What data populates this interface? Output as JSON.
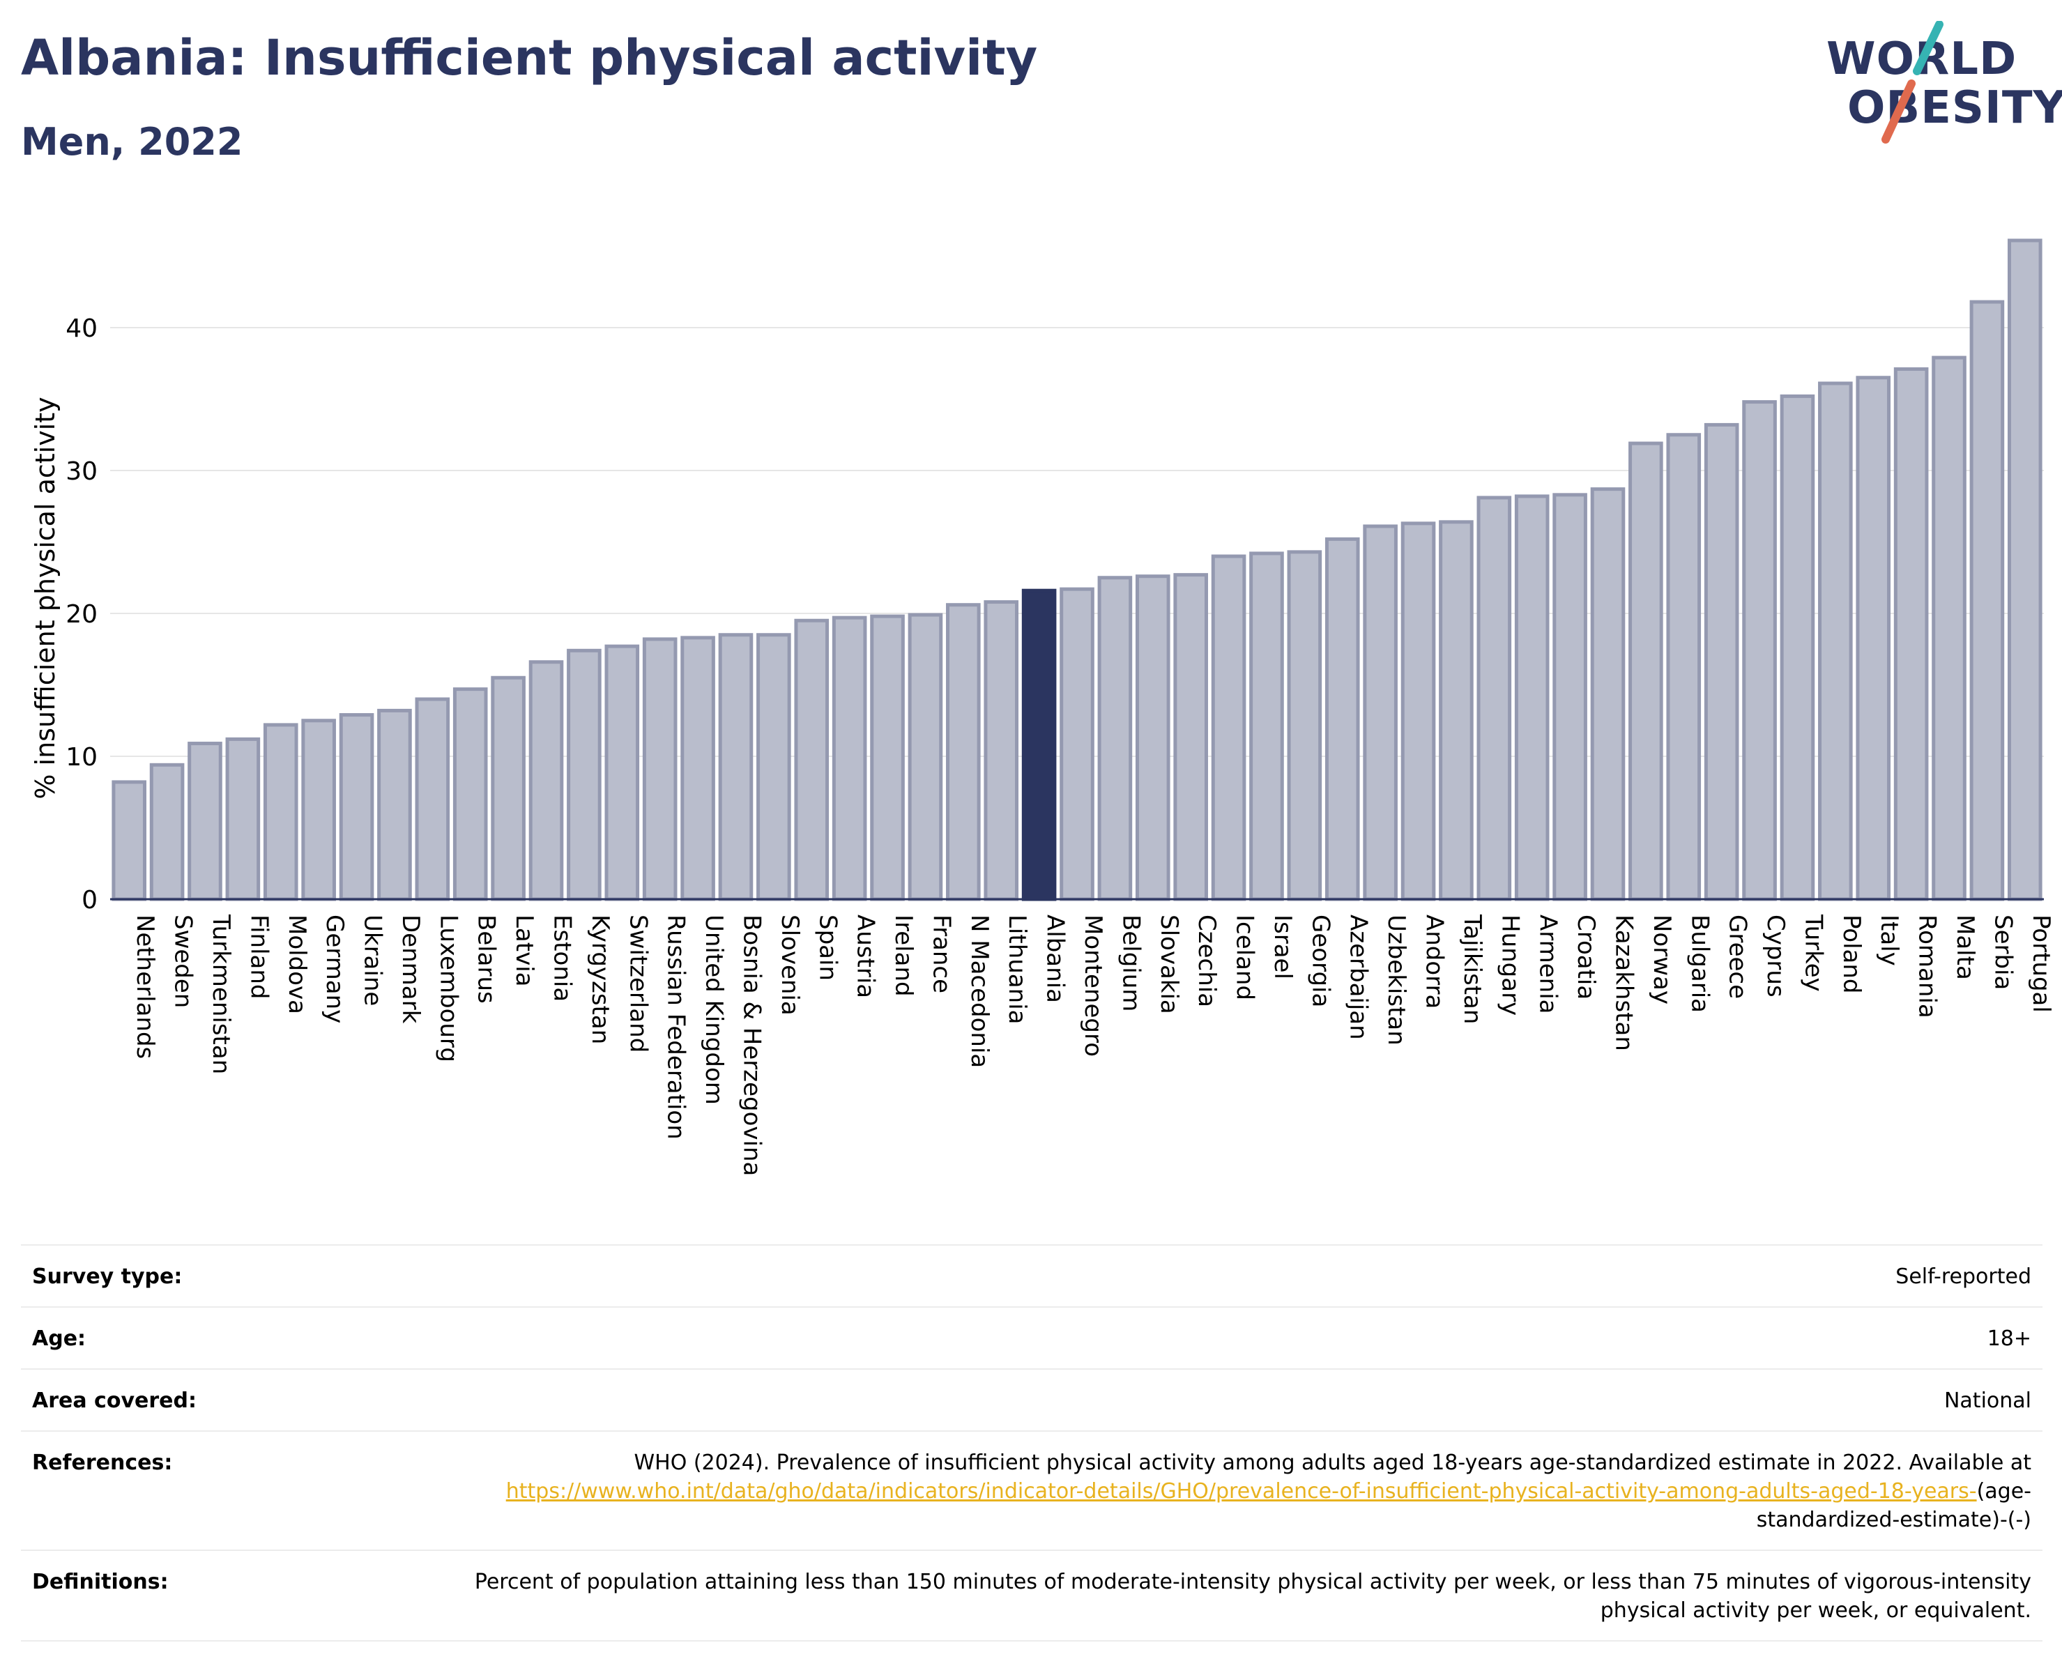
{
  "header": {
    "title": "Albania: Insufficient physical activity",
    "subtitle": "Men, 2022"
  },
  "logo": {
    "line1": "WORLD",
    "line2": "OBESITY",
    "slash_colors": [
      "#36b3b3",
      "#e06a4e"
    ]
  },
  "colors": {
    "bar": "#b9bdcc",
    "bar_stroke": "#9499b0",
    "highlight": "#2b3560",
    "axis": "#2b3560",
    "grid": "#e6e6e6"
  },
  "chart_data": {
    "type": "bar",
    "title": "Albania: Insufficient physical activity",
    "subtitle": "Men, 2022",
    "xlabel": "",
    "ylabel": "% insufficient physical activity",
    "ylim": [
      0,
      48
    ],
    "yticks": [
      0,
      10,
      20,
      30,
      40
    ],
    "grid": true,
    "highlight": "Albania",
    "categories": [
      "Netherlands",
      "Sweden",
      "Turkmenistan",
      "Finland",
      "Moldova",
      "Germany",
      "Ukraine",
      "Denmark",
      "Luxembourg",
      "Belarus",
      "Latvia",
      "Estonia",
      "Kyrgyzstan",
      "Switzerland",
      "Russian Federation",
      "United Kingdom",
      "Bosnia & Herzegovina",
      "Slovenia",
      "Spain",
      "Austria",
      "Ireland",
      "France",
      "N Macedonia",
      "Lithuania",
      "Albania",
      "Montenegro",
      "Belgium",
      "Slovakia",
      "Czechia",
      "Iceland",
      "Israel",
      "Georgia",
      "Azerbaijan",
      "Uzbekistan",
      "Andorra",
      "Tajikistan",
      "Hungary",
      "Armenia",
      "Croatia",
      "Kazakhstan",
      "Norway",
      "Bulgaria",
      "Greece",
      "Cyprus",
      "Turkey",
      "Poland",
      "Italy",
      "Romania",
      "Malta",
      "Serbia",
      "Portugal"
    ],
    "values": [
      8.2,
      9.4,
      10.9,
      11.2,
      12.2,
      12.5,
      12.9,
      13.2,
      14.0,
      14.7,
      15.5,
      16.6,
      17.4,
      17.7,
      18.2,
      18.3,
      18.5,
      18.5,
      19.5,
      19.7,
      19.8,
      19.9,
      20.6,
      20.8,
      21.6,
      21.7,
      22.5,
      22.6,
      22.7,
      24.0,
      24.2,
      24.3,
      25.2,
      26.1,
      26.3,
      26.4,
      28.1,
      28.2,
      28.3,
      28.7,
      31.9,
      32.5,
      33.2,
      34.8,
      35.2,
      36.1,
      36.5,
      37.1,
      37.9,
      41.8,
      46.1
    ]
  },
  "details": [
    {
      "key": "Survey type:",
      "value": "Self-reported"
    },
    {
      "key": "Age:",
      "value": "18+"
    },
    {
      "key": "Area covered:",
      "value": "National"
    }
  ],
  "references": {
    "key": "References:",
    "text": "WHO (2024). Prevalence of insufficient physical activity among adults aged 18-years age-standardized estimate in 2022. Available at",
    "link": "https://www.who.int/data/gho/data/indicators/indicator-details/GHO/prevalence-of-insufficient-physical-activity-among-adults-aged-18-years-",
    "suffix": "(age-standardized-estimate)-(-)"
  },
  "definitions": {
    "key": "Definitions:",
    "value": "Percent of population attaining less than 150 minutes of moderate-intensity physical activity per week, or less than 75 minutes of vigorous-intensity physical activity per week, or equivalent."
  }
}
